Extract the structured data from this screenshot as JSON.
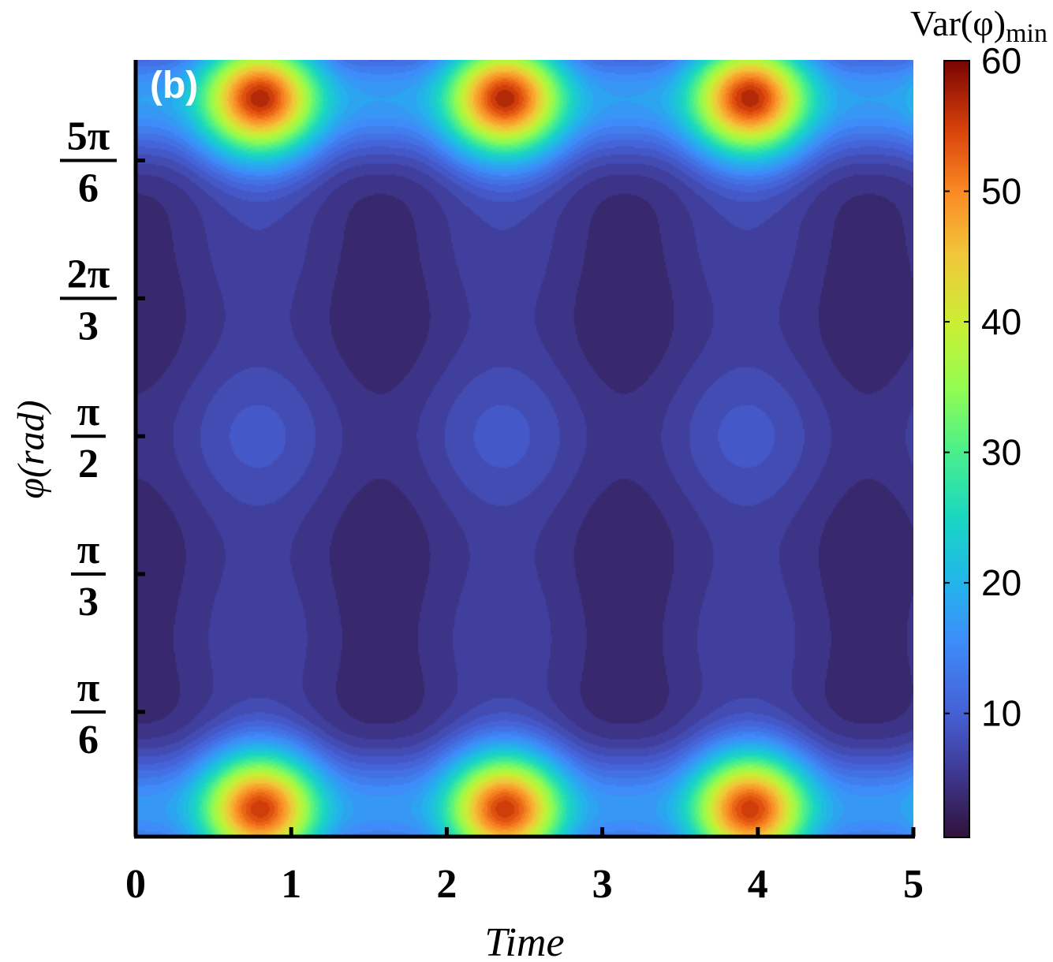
{
  "chart_data": {
    "type": "heatmap",
    "panel_label": "(b)",
    "xlabel": "Time",
    "ylabel": "φ(rad)",
    "xlim": [
      0,
      5
    ],
    "ylim": [
      0.05,
      3.0
    ],
    "x_ticks": [
      "0",
      "1",
      "2",
      "3",
      "4",
      "5"
    ],
    "y_ticks": [
      {
        "value": 0.5236,
        "num": "π",
        "den": "6"
      },
      {
        "value": 1.0472,
        "num": "π",
        "den": "3"
      },
      {
        "value": 1.5708,
        "num": "π",
        "den": "2"
      },
      {
        "value": 2.0944,
        "num": "2π",
        "den": "3"
      },
      {
        "value": 2.618,
        "num": "5π",
        "den": "6"
      }
    ],
    "colorbar": {
      "title_main": "Var(φ)",
      "title_sub": "min",
      "range": [
        0.5,
        60
      ],
      "ticks": [
        "10",
        "20",
        "30",
        "40",
        "50",
        "60"
      ],
      "colormap": "turbo"
    },
    "features": {
      "maxima": [
        {
          "time": 0.8,
          "phi": 0.15,
          "value": 60
        },
        {
          "time": 2.4,
          "phi": 0.15,
          "value": 60
        },
        {
          "time": 3.95,
          "phi": 0.15,
          "value": 60
        },
        {
          "time": 0.8,
          "phi": 2.86,
          "value": 60
        },
        {
          "time": 2.4,
          "phi": 2.86,
          "value": 60
        },
        {
          "time": 3.95,
          "phi": 2.86,
          "value": 60
        }
      ],
      "minima_times": [
        0.05,
        1.57,
        3.14,
        4.71
      ],
      "minima_phi": [
        0.83,
        2.31
      ]
    }
  }
}
